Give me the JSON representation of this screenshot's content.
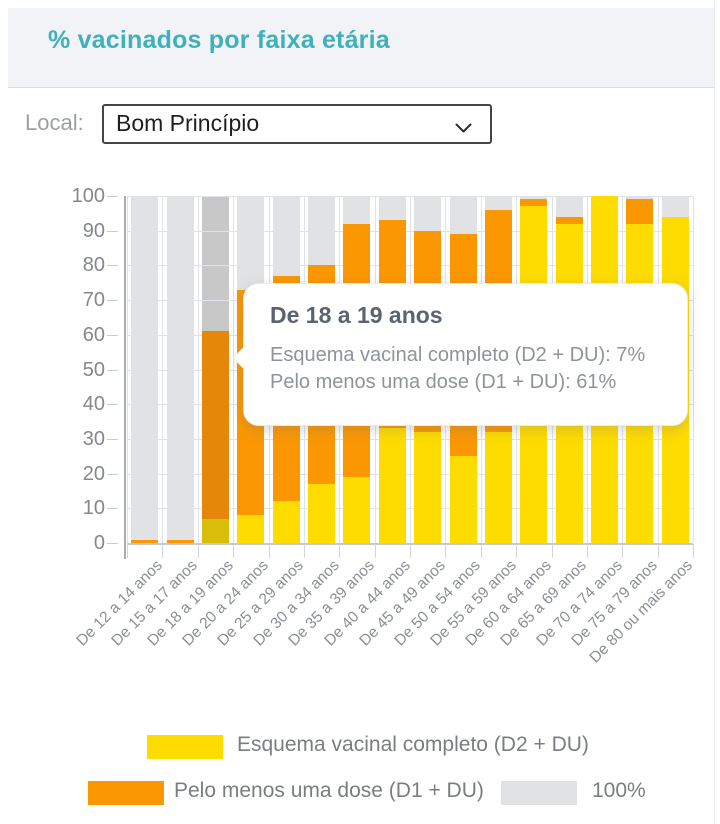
{
  "header": {
    "title": "% vacinados por faixa etária"
  },
  "filter": {
    "label": "Local:",
    "value": "Bom Princípio"
  },
  "chart_data": {
    "type": "bar",
    "title": "% vacinados por faixa etária",
    "categories": [
      "De 12 a 14 anos",
      "De 15 a 17 anos",
      "De 18 a 19 anos",
      "De 20 a 24 anos",
      "De 25 a 29 anos",
      "De 30 a 34 anos",
      "De 35 a 39 anos",
      "De 40 a 44 anos",
      "De 45 a 49 anos",
      "De 50 a 54 anos",
      "De 55 a 59 anos",
      "De 60 a 64 anos",
      "De 65 a 69 anos",
      "De 70 a 74 anos",
      "De 75 a 79 anos",
      "De 80 ou mais anos"
    ],
    "series": [
      {
        "name": "Esquema vacinal completo (D2 + DU)",
        "color": "#FFDC00",
        "values": [
          0,
          0,
          7,
          8,
          12,
          17,
          19,
          33,
          32,
          25,
          32,
          97,
          92,
          100,
          92,
          94
        ]
      },
      {
        "name": "Pelo menos uma dose (D1 + DU)",
        "color": "#FB9702",
        "values": [
          1,
          1,
          61,
          73,
          77,
          80,
          92,
          93,
          90,
          89,
          96,
          99,
          94,
          100,
          99,
          94
        ]
      },
      {
        "name": "100%",
        "color": "#E1E2E3",
        "values": [
          100,
          100,
          100,
          100,
          100,
          100,
          100,
          100,
          100,
          100,
          100,
          100,
          100,
          100,
          100,
          100
        ]
      }
    ],
    "ylim": [
      0,
      100
    ],
    "yticks": [
      0,
      10,
      20,
      30,
      40,
      50,
      60,
      70,
      80,
      90,
      100
    ],
    "grid": true,
    "legend_position": "bottom",
    "hover_index": 2
  },
  "tooltip": {
    "title": "De 18 a 19 anos",
    "line1": "Esquema vacinal completo (D2 + DU): 7%",
    "line2": "Pelo menos uma dose (D1 + DU): 61%"
  },
  "legend": {
    "items": [
      {
        "label": "Esquema vacinal completo (D2 + DU)",
        "color": "#FFDC00"
      },
      {
        "label": "Pelo menos uma dose (D1 + DU)",
        "color": "#FB9702"
      },
      {
        "label": "100%",
        "color": "#E1E2E3"
      }
    ]
  },
  "colors": {
    "accent_teal": "#3FB1BA",
    "bar_yellow": "#FFDC00",
    "bar_orange": "#FB9702",
    "bar_gray": "#E1E2E3",
    "hover_yellow": "#D9BD0B",
    "hover_orange": "#E5880A",
    "hover_gray": "#C8C8C9",
    "gridline": "#DFE2E9",
    "axis_text": "#84878D"
  }
}
